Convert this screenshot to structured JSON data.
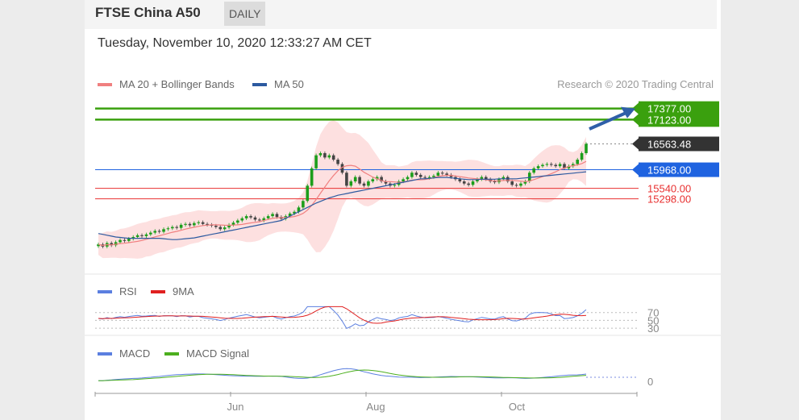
{
  "header": {
    "instrument": "FTSE China A50",
    "interval": "DAILY"
  },
  "timestamp": "Tuesday, November 10, 2020 12:33:27 AM CET",
  "legend": [
    {
      "label": "MA 20 + Bollinger Bands",
      "color": "#f08080"
    },
    {
      "label": "MA 50",
      "color": "#2c5aa0"
    }
  ],
  "credit": "Research © 2020 Trading Central",
  "price_levels": [
    {
      "value": "17377.00",
      "color": "#3aa00e",
      "style": "box"
    },
    {
      "value": "17123.00",
      "color": "#3aa00e",
      "style": "box"
    },
    {
      "value": "16563.48",
      "color": "#333333",
      "style": "box"
    },
    {
      "value": "15968.00",
      "color": "#1f63e0",
      "style": "box"
    },
    {
      "value": "15540.00",
      "color": "#e83030",
      "style": "text"
    },
    {
      "value": "15298.00",
      "color": "#e83030",
      "style": "text"
    }
  ],
  "rsi": {
    "legend": [
      {
        "label": "RSI",
        "color": "#5b7fe0"
      },
      {
        "label": "9MA",
        "color": "#e02020"
      }
    ],
    "levels": [
      "70",
      "50",
      "30"
    ]
  },
  "macd": {
    "legend": [
      {
        "label": "MACD",
        "color": "#5b7fe0"
      },
      {
        "label": "MACD Signal",
        "color": "#4caf1e"
      }
    ],
    "levels": [
      "0"
    ]
  },
  "chart_data": {
    "type": "line",
    "x_ticks": [
      "Jun",
      "Aug",
      "Oct"
    ],
    "price_series": [
      14250,
      14200,
      14280,
      14230,
      14300,
      14350,
      14330,
      14380,
      14420,
      14460,
      14440,
      14480,
      14520,
      14560,
      14540,
      14600,
      14620,
      14650,
      14630,
      14700,
      14720,
      14690,
      14740,
      14760,
      14720,
      14700,
      14680,
      14650,
      14600,
      14640,
      14700,
      14750,
      14800,
      14850,
      14900,
      14870,
      14820,
      14800,
      14850,
      14900,
      14950,
      14880,
      14840,
      14900,
      14960,
      15000,
      15100,
      15250,
      15600,
      16000,
      16300,
      16350,
      16250,
      16300,
      16200,
      16100,
      15900,
      15600,
      15700,
      15800,
      15650,
      15600,
      15700,
      15750,
      15800,
      15700,
      15650,
      15600,
      15620,
      15700,
      15750,
      15800,
      15900,
      15850,
      15800,
      15780,
      15800,
      15830,
      15900,
      15880,
      15850,
      15800,
      15750,
      15700,
      15650,
      15620,
      15700,
      15750,
      15800,
      15750,
      15700,
      15680,
      15750,
      15800,
      15700,
      15620,
      15600,
      15650,
      15700,
      15900,
      16000,
      16050,
      16080,
      16100,
      16080,
      16050,
      16100,
      16000,
      16050,
      16100,
      16200,
      16350,
      16563
    ],
    "ma50_series": [
      14500,
      14480,
      14460,
      14440,
      14420,
      14410,
      14400,
      14390,
      14390,
      14390,
      14390,
      14390,
      14390,
      14390,
      14390,
      14380,
      14370,
      14360,
      14360,
      14370,
      14380,
      14390,
      14400,
      14420,
      14440,
      14460,
      14480,
      14500,
      14520,
      14540,
      14560,
      14580,
      14600,
      14620,
      14640,
      14660,
      14680,
      14700,
      14720,
      14740,
      14760,
      14780,
      14800,
      14850,
      14900,
      14950,
      15000,
      15050,
      15100,
      15150,
      15200,
      15240,
      15280,
      15320,
      15350,
      15380,
      15400,
      15420,
      15440,
      15460,
      15480,
      15500,
      15520,
      15540,
      15560,
      15580,
      15600,
      15620,
      15640,
      15660,
      15680,
      15700,
      15720,
      15740,
      15760,
      15760,
      15770,
      15780,
      15790,
      15790,
      15790,
      15780,
      15770,
      15760,
      15750,
      15740,
      15740,
      15740,
      15750,
      15750,
      15750,
      15750,
      15760,
      15760,
      15760,
      15760,
      15760,
      15770,
      15780,
      15790,
      15800,
      15810,
      15820,
      15830,
      15840,
      15850,
      15860,
      15870,
      15880,
      15890,
      15900,
      15910,
      15920
    ],
    "price_ylim": [
      13900,
      17500
    ]
  }
}
